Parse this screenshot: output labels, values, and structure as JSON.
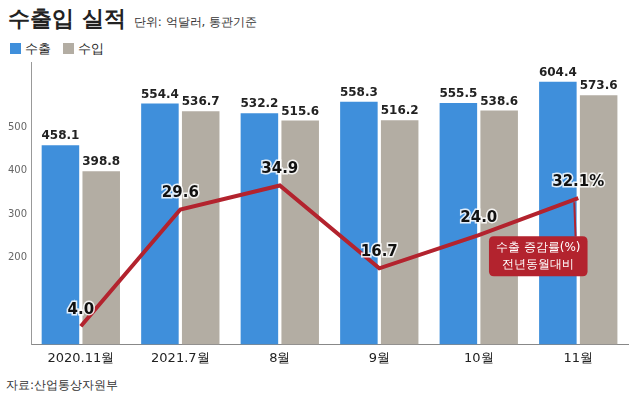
{
  "chart_data": {
    "type": "bar",
    "title": "수출입 실적",
    "subtitle": "단위: 억달러, 통관기준",
    "source": "자료:산업통상자원부",
    "categories": [
      "2020.11월",
      "2021.7월",
      "8월",
      "9월",
      "10월",
      "11월"
    ],
    "series": [
      {
        "name": "수출",
        "color": "#3f8fdb",
        "values": [
          458.1,
          554.4,
          532.2,
          558.3,
          555.5,
          604.4
        ]
      },
      {
        "name": "수입",
        "color": "#b3ada3",
        "values": [
          398.8,
          536.7,
          515.6,
          516.2,
          538.6,
          573.6
        ]
      },
      {
        "name": "수출 증감률(%)",
        "type": "line",
        "axis": "y2",
        "color": "#b3232e",
        "values": [
          4.0,
          29.6,
          34.9,
          16.7,
          24.0,
          32.1
        ],
        "value_labels": [
          "4.0",
          "29.6",
          "34.9",
          "16.7",
          "24.0",
          "32.1%"
        ]
      }
    ],
    "annotation": "전년동월대비",
    "ylim": [
      0,
      650
    ],
    "yticks": [
      200,
      300,
      400,
      500
    ],
    "y2lim": [
      0,
      62
    ],
    "data_labels": true,
    "legend": "top-left",
    "grid": false
  }
}
